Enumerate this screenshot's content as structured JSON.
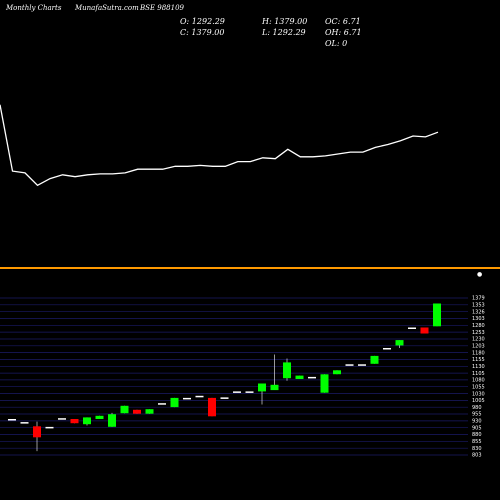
{
  "header": {
    "title": "Monthly Charts",
    "site": "MunafaSutra.com",
    "symbol": "BSE 988109"
  },
  "ohlc": {
    "o": "O: 1292.29",
    "c": "C: 1379.00",
    "h": "H: 1379.00",
    "l": "L: 1292.29",
    "oc": "OC: 6.71",
    "oh": "OH: 6.71",
    "ol": "OL: 0"
  },
  "colors": {
    "background": "#000000",
    "up": "#00ff00",
    "down": "#ff0000",
    "line": "#ffffff",
    "divider": "#ff9900",
    "grid": "#1a1a66"
  },
  "chart_data": [
    {
      "type": "line",
      "series": [
        {
          "values": [
            840,
            770,
            768,
            755,
            762,
            766,
            764,
            766,
            767,
            767,
            768,
            772,
            772,
            772,
            775,
            775,
            776,
            775,
            775,
            780,
            780,
            784,
            783,
            793,
            785,
            785,
            786,
            788,
            790,
            790,
            795,
            798,
            802,
            807,
            806,
            811
          ]
        }
      ]
    },
    {
      "type": "candlestick",
      "ylim": [
        803,
        1400
      ],
      "yticks": [
        "1379",
        "1353",
        "1326",
        "1303",
        "1280",
        "1253",
        "1230",
        "1203",
        "1180",
        "1155",
        "1130",
        "1105",
        "1080",
        "1055",
        "1030",
        "1005",
        "980",
        "955",
        "930",
        "905",
        "880",
        "855",
        "830",
        "803"
      ],
      "candles": [
        {
          "o": 940,
          "h": 940,
          "l": 940,
          "c": 940
        },
        {
          "o": 928,
          "h": 928,
          "l": 928,
          "c": 928
        },
        {
          "o": 912,
          "h": 930,
          "l": 818,
          "c": 870
        },
        {
          "o": 910,
          "h": 910,
          "l": 910,
          "c": 910
        },
        {
          "o": 943,
          "h": 943,
          "l": 943,
          "c": 943
        },
        {
          "o": 940,
          "h": 940,
          "l": 924,
          "c": 924
        },
        {
          "o": 920,
          "h": 946,
          "l": 915,
          "c": 946
        },
        {
          "o": 940,
          "h": 952,
          "l": 940,
          "c": 952
        },
        {
          "o": 910,
          "h": 963,
          "l": 910,
          "c": 958
        },
        {
          "o": 962,
          "h": 990,
          "l": 962,
          "c": 990
        },
        {
          "o": 975,
          "h": 975,
          "l": 960,
          "c": 960
        },
        {
          "o": 960,
          "h": 977,
          "l": 960,
          "c": 977
        },
        {
          "o": 1000,
          "h": 1000,
          "l": 1000,
          "c": 1000
        },
        {
          "o": 985,
          "h": 1020,
          "l": 985,
          "c": 1020
        },
        {
          "o": 1020,
          "h": 1020,
          "l": 1020,
          "c": 1020
        },
        {
          "o": 1028,
          "h": 1028,
          "l": 1028,
          "c": 1028
        },
        {
          "o": 1020,
          "h": 1020,
          "l": 950,
          "c": 950
        },
        {
          "o": 1022,
          "h": 1022,
          "l": 1022,
          "c": 1022
        },
        {
          "o": 1045,
          "h": 1045,
          "l": 1045,
          "c": 1045
        },
        {
          "o": 1045,
          "h": 1045,
          "l": 1045,
          "c": 1045
        },
        {
          "o": 1045,
          "h": 1075,
          "l": 995,
          "c": 1075
        },
        {
          "o": 1050,
          "h": 1185,
          "l": 1050,
          "c": 1070
        },
        {
          "o": 1095,
          "h": 1170,
          "l": 1085,
          "c": 1155
        },
        {
          "o": 1092,
          "h": 1105,
          "l": 1092,
          "c": 1105
        },
        {
          "o": 1100,
          "h": 1100,
          "l": 1100,
          "c": 1100
        },
        {
          "o": 1040,
          "h": 1110,
          "l": 1040,
          "c": 1110
        },
        {
          "o": 1110,
          "h": 1125,
          "l": 1110,
          "c": 1125
        },
        {
          "o": 1148,
          "h": 1148,
          "l": 1148,
          "c": 1148
        },
        {
          "o": 1148,
          "h": 1148,
          "l": 1148,
          "c": 1148
        },
        {
          "o": 1150,
          "h": 1180,
          "l": 1150,
          "c": 1180
        },
        {
          "o": 1210,
          "h": 1210,
          "l": 1210,
          "c": 1210
        },
        {
          "o": 1220,
          "h": 1240,
          "l": 1210,
          "c": 1240
        },
        {
          "o": 1288,
          "h": 1288,
          "l": 1288,
          "c": 1288
        },
        {
          "o": 1288,
          "h": 1288,
          "l": 1265,
          "c": 1265
        },
        {
          "o": 1292.29,
          "h": 1379,
          "l": 1292.29,
          "c": 1379
        }
      ]
    }
  ]
}
